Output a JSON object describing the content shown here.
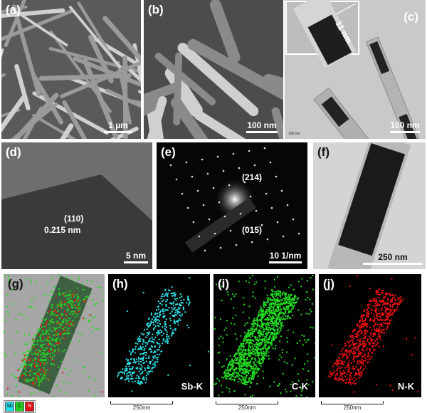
{
  "panels": {
    "a": {
      "label": "(a)",
      "scale": "1 µm"
    },
    "b": {
      "label": "(b)",
      "scale": "100 nm"
    },
    "c": {
      "label": "(c)",
      "scale": "100 nm",
      "inset_annotation": "11 nm",
      "small_scale": "100 nm"
    },
    "d": {
      "label": "(d)",
      "plane": "(110)",
      "spacing": "0.215 nm",
      "scale": "5 nm"
    },
    "e": {
      "label": "(e)",
      "spot1": "(214)",
      "spot2": "(015)",
      "scale": "10 1/nm"
    },
    "f": {
      "label": "(f)",
      "scale": "250 nm"
    },
    "g": {
      "label": "(g)",
      "legend": [
        {
          "name": "Sb",
          "color": "#22e0e8"
        },
        {
          "name": "C",
          "color": "#22cc22"
        },
        {
          "name": "N",
          "color": "#dd1111"
        }
      ]
    },
    "h": {
      "label": "(h)",
      "element": "Sb-K",
      "scale": "250nm",
      "color": "#2ee6ee"
    },
    "i": {
      "label": "(i)",
      "element": "C-K",
      "scale": "250nm",
      "color": "#22dd22"
    },
    "j": {
      "label": "(j)",
      "element": "N-K",
      "scale": "250nm",
      "color": "#ee1111"
    }
  }
}
